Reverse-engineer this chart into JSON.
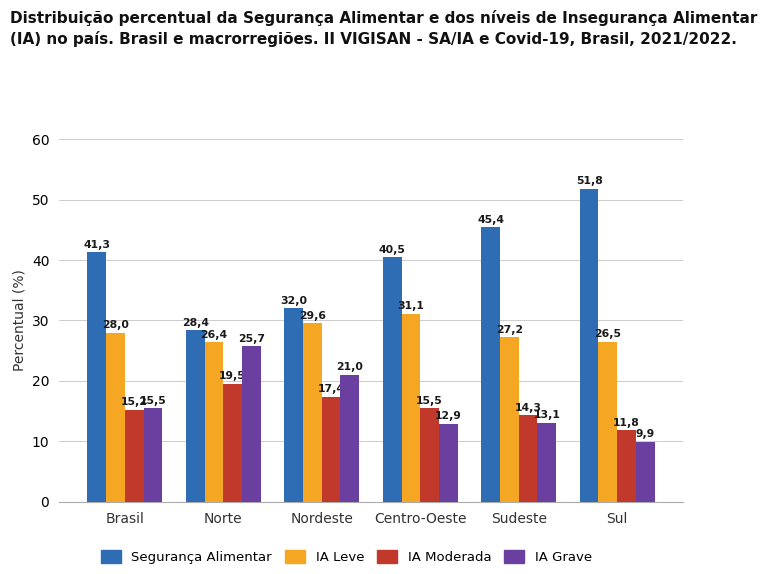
{
  "title_line1": "Distribuição percentual da Segurança Alimentar e dos níveis de Insegurança Alimentar",
  "title_line2": "(IA) no país. Brasil e macrorregiões. II VIGISAN - SA/IA e Covid-19, Brasil, 2021/2022.",
  "categories": [
    "Brasil",
    "Norte",
    "Nordeste",
    "Centro-Oeste",
    "Sudeste",
    "Sul"
  ],
  "series": {
    "Segurança Alimentar": [
      41.3,
      28.4,
      32.0,
      40.5,
      45.4,
      51.8
    ],
    "IA Leve": [
      28.0,
      26.4,
      29.6,
      31.1,
      27.2,
      26.5
    ],
    "IA Moderada": [
      15.2,
      19.5,
      17.4,
      15.5,
      14.3,
      11.8
    ],
    "IA Grave": [
      15.5,
      25.7,
      21.0,
      12.9,
      13.1,
      9.9
    ]
  },
  "colors": {
    "Segurança Alimentar": "#2E6DB4",
    "IA Leve": "#F5A623",
    "IA Moderada": "#C0392B",
    "IA Grave": "#6B3FA0"
  },
  "ylabel": "Percentual (%)",
  "ylim": [
    0,
    60
  ],
  "yticks": [
    0,
    10,
    20,
    30,
    40,
    50,
    60
  ],
  "bar_width": 0.19,
  "label_fontsize": 7.8,
  "axis_fontsize": 10,
  "title_fontsize": 11,
  "legend_fontsize": 9.5,
  "background_color": "#FFFFFF"
}
